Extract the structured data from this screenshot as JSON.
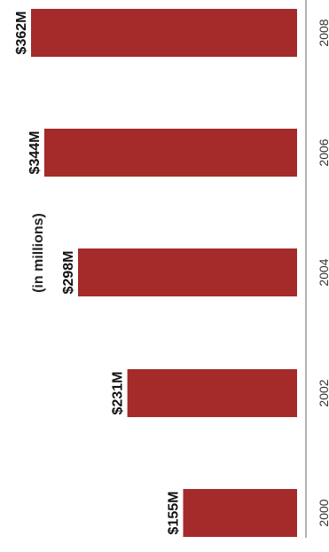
{
  "chart_data": {
    "type": "bar",
    "orientation": "rotated-90-clockwise",
    "subtitle": "(in millions)",
    "categories": [
      "2000",
      "2002",
      "2004",
      "2006",
      "2008"
    ],
    "values": [
      155,
      231,
      298,
      344,
      362
    ],
    "data_labels": [
      "$155M",
      "$231M",
      "$298M",
      "$344M",
      "$362M"
    ],
    "ylim": [
      0,
      362
    ],
    "grid": false,
    "bar_color": "#a52a2a"
  }
}
